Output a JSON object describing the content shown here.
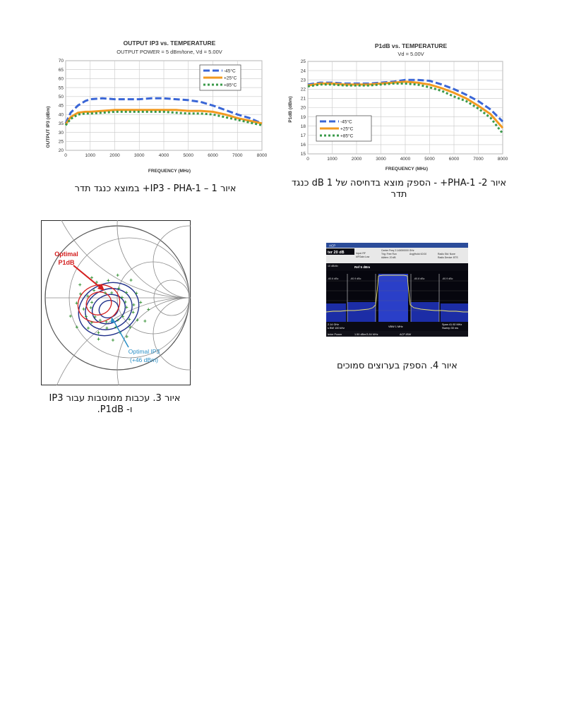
{
  "chart_data": [
    {
      "type": "line",
      "title": "OUTPUT IP3 vs. TEMPERATURE",
      "subtitle": "OUTPUT POWER = 5 dBm/tone, Vd = 5.00V",
      "xlabel": "FREQUENCY (MHz)",
      "ylabel": "OUTPUT IP3 (dBm)",
      "xlim": [
        0,
        8000
      ],
      "ylim": [
        20,
        70
      ],
      "xticks": [
        0,
        1000,
        2000,
        3000,
        4000,
        5000,
        6000,
        7000,
        8000
      ],
      "yticks": [
        20,
        25,
        30,
        35,
        40,
        45,
        50,
        55,
        60,
        65,
        70
      ],
      "grid": true,
      "legend": "top-right",
      "series": [
        {
          "name": "-45°C",
          "color": "#3a66d6",
          "dash": "dash",
          "x": [
            0,
            200,
            500,
            800,
            1000,
            1500,
            2000,
            2500,
            3000,
            3500,
            4000,
            4500,
            5000,
            5500,
            6000,
            6500,
            7000,
            7500,
            8000
          ],
          "y": [
            35,
            41,
            45,
            47.5,
            48.5,
            49,
            48.5,
            48.5,
            48.5,
            49,
            49,
            48.5,
            48,
            47,
            45,
            42.5,
            40,
            38,
            35
          ]
        },
        {
          "name": "+25°C",
          "color": "#f29a20",
          "dash": "solid",
          "x": [
            0,
            200,
            500,
            800,
            1000,
            1500,
            2000,
            2500,
            3000,
            3500,
            4000,
            4500,
            5000,
            5500,
            6000,
            6500,
            7000,
            7500,
            8000
          ],
          "y": [
            34.5,
            38.5,
            41,
            41.5,
            41.5,
            42,
            42.5,
            42.5,
            42.5,
            42.5,
            42.5,
            42.5,
            42,
            42,
            41.5,
            40,
            38,
            36.5,
            35
          ]
        },
        {
          "name": "+85°C",
          "color": "#3a9a4a",
          "dash": "dot",
          "x": [
            0,
            200,
            500,
            800,
            1000,
            1500,
            2000,
            2500,
            3000,
            3500,
            4000,
            4500,
            5000,
            5500,
            6000,
            6500,
            7000,
            7500,
            8000
          ],
          "y": [
            34,
            37.5,
            40,
            40.5,
            40.5,
            41,
            41.5,
            41.5,
            41.5,
            41.5,
            41.5,
            41,
            40.5,
            40.5,
            40,
            38.5,
            37,
            35.5,
            34
          ]
        }
      ]
    },
    {
      "type": "line",
      "title": "P1dB vs. TEMPERATURE",
      "subtitle": "Vd = 5.00V",
      "xlabel": "FREQUENCY (MHz)",
      "ylabel": "P1dB (dBm)",
      "xlim": [
        0,
        8000
      ],
      "ylim": [
        15,
        25
      ],
      "xticks": [
        0,
        1000,
        2000,
        3000,
        4000,
        5000,
        6000,
        7000,
        8000
      ],
      "yticks": [
        15,
        16,
        17,
        18,
        19,
        20,
        21,
        22,
        23,
        24,
        25
      ],
      "grid": true,
      "legend": "bottom-left",
      "series": [
        {
          "name": "-45°C",
          "color": "#3a66d6",
          "dash": "dash",
          "x": [
            0,
            500,
            1000,
            1500,
            2000,
            2500,
            3000,
            3500,
            4000,
            4500,
            5000,
            5500,
            6000,
            6500,
            7000,
            7500,
            8000
          ],
          "y": [
            22.5,
            22.7,
            22.7,
            22.6,
            22.6,
            22.6,
            22.7,
            22.8,
            23,
            23,
            22.9,
            22.5,
            22,
            21.4,
            20.7,
            19.8,
            18.5
          ]
        },
        {
          "name": "+25°C",
          "color": "#f29a20",
          "dash": "solid",
          "x": [
            0,
            500,
            1000,
            1500,
            2000,
            2500,
            3000,
            3500,
            4000,
            4500,
            5000,
            5500,
            6000,
            6500,
            7000,
            7500,
            8000
          ],
          "y": [
            22.4,
            22.6,
            22.6,
            22.5,
            22.5,
            22.5,
            22.6,
            22.7,
            22.8,
            22.7,
            22.5,
            22.1,
            21.6,
            21,
            20.2,
            19.3,
            17.8
          ]
        },
        {
          "name": "+85°C",
          "color": "#3a9a4a",
          "dash": "dot",
          "x": [
            0,
            500,
            1000,
            1500,
            2000,
            2500,
            3000,
            3500,
            4000,
            4500,
            5000,
            5500,
            6000,
            6500,
            7000,
            7500,
            8000
          ],
          "y": [
            22.3,
            22.5,
            22.5,
            22.4,
            22.4,
            22.4,
            22.5,
            22.6,
            22.6,
            22.5,
            22.2,
            21.8,
            21.2,
            20.7,
            19.9,
            18.9,
            17.2
          ]
        }
      ]
    }
  ],
  "figure3": {
    "label_p1db_line1": "Optimal",
    "label_p1db_line2": "P1dB",
    "label_ip3_line1": "Optimal IP3",
    "label_ip3_line2": "(+46 dBm)",
    "red_color": "#d42020",
    "blue_color": "#2a8fc6",
    "contour_color": "#1f2f8a",
    "plus_color": "#2f8f2f"
  },
  "figure4": {
    "title_bar": "ACP",
    "ref_level": "Ref 20 dBm",
    "atten": "ter 20 dB",
    "center": "Center Freq 2.140000000 GHz",
    "trig": "Trig: Free Run",
    "avg": "Avg|Hold>10/10",
    "input": "Input: RF",
    "ifgain": "#IFGain:Low",
    "atten2": "#Atten: 20 dB",
    "radio_std": "Radio Std: None",
    "radio_device": "Radio Device: BTS",
    "ref_offs": "Ref 5 dBm",
    "scale": "10 dB/div",
    "center_label": "2.14 GHz",
    "res_bw": "s BW 100 kHz",
    "vbw": "VBW 1 MHz",
    "span": "Span 41.92 MHz",
    "sweep": "Sweep 30 ms",
    "bottom_left": "ierier Power",
    "bottom_mid": "1.50 dBm/3.84 MHz",
    "bottom_right": "ACP-IBW",
    "marker_left1": "-60.9 dBc",
    "marker_left2": "-60.6 dBc",
    "marker_right1": "-60.8 dBc",
    "marker_right2": "-60.9 dBc"
  },
  "captions": {
    "fig1": "איור 1 – IP3 - PHA-1+ במוצא כנגד תדר",
    "fig2_line1": "איור 2- PHA-1+ - הספק מוצא בדחיסה של 1 dB כנגד",
    "fig2_line2": "תדר",
    "fig3_line1": "איור 3. עכבות ממוטבות עבור IP3",
    "fig3_line2": "ו- P1dB.",
    "fig4": "איור 4. הספק בערוצים סמוכים"
  }
}
